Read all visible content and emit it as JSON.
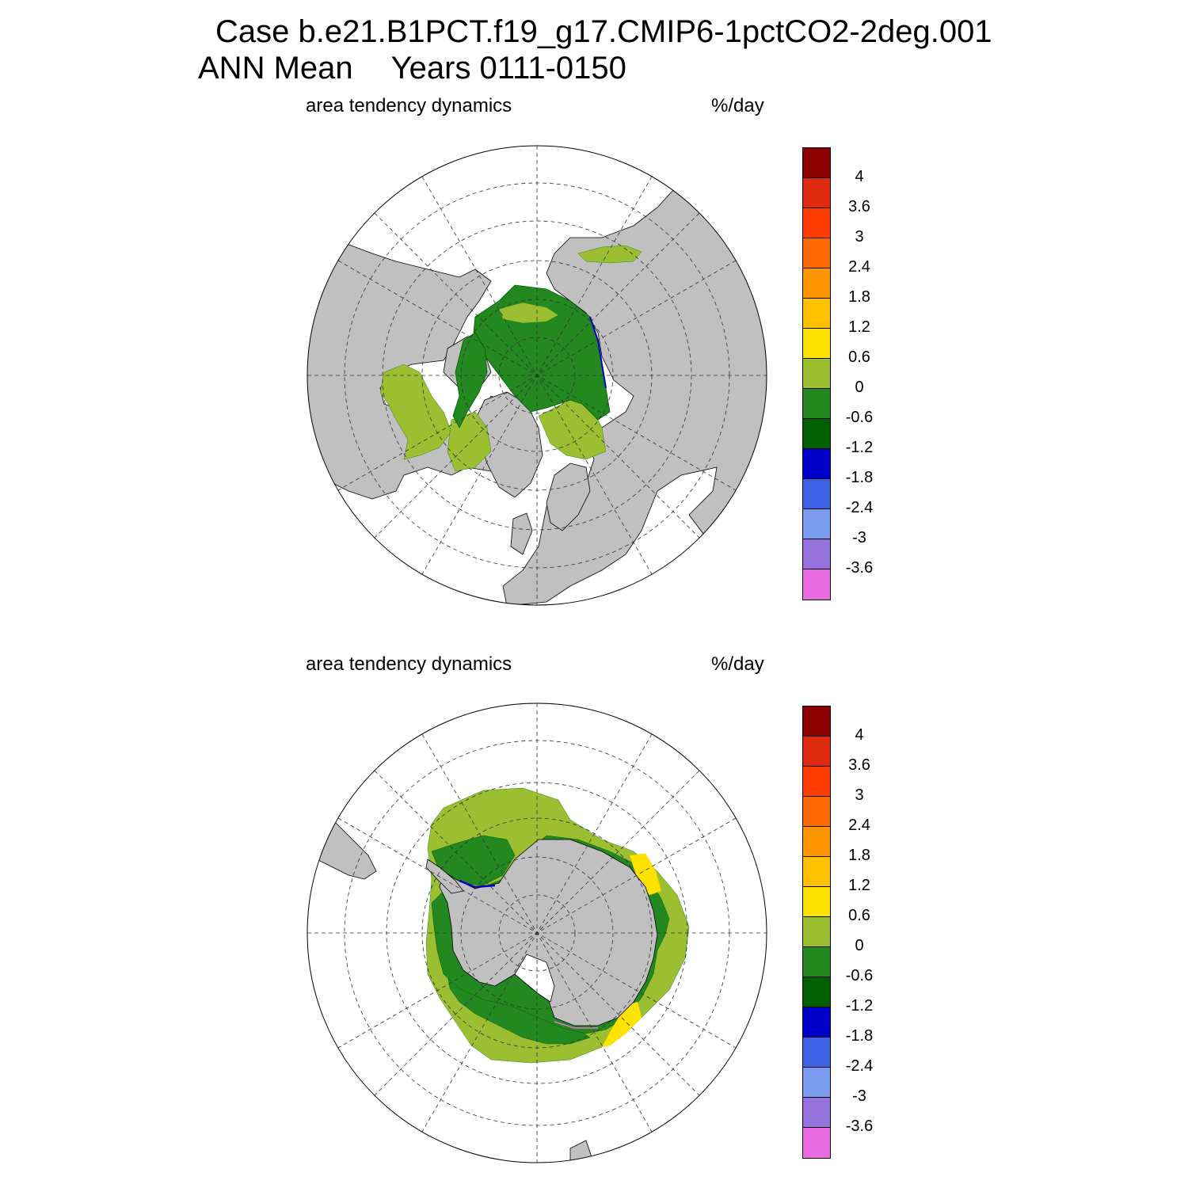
{
  "title": {
    "case": "Case b.e21.B1PCT.f19_g17.CMIP6-1pctCO2-2deg.001",
    "season": "ANN Mean",
    "years": "Years 0111-0150"
  },
  "panels": [
    {
      "name": "north",
      "variable": "area tendency dynamics",
      "units": "%/day"
    },
    {
      "name": "south",
      "variable": "area tendency dynamics",
      "units": "%/day"
    }
  ],
  "colorbar": {
    "levels": [
      "4",
      "3.6",
      "3",
      "2.4",
      "1.8",
      "1.2",
      "0.6",
      "0",
      "-0.6",
      "-1.2",
      "-1.8",
      "-2.4",
      "-3",
      "-3.6"
    ],
    "colors": [
      "#8b0000",
      "#dd2a10",
      "#ff3d00",
      "#ff6a00",
      "#ff9500",
      "#ffc000",
      "#ffe300",
      "#9cbf31",
      "#22881f",
      "#005f00",
      "#0000c8",
      "#3c63e6",
      "#7b9cf0",
      "#9673dc",
      "#e86ce0"
    ]
  },
  "map_colors": {
    "land": "#c0c0c0",
    "ocean": "#ffffff",
    "light_green": "#9cbf31",
    "green": "#22881f",
    "dark_green": "#005f00",
    "blue": "#0000c8",
    "yellow": "#ffe300",
    "violet": "#e86ce0"
  }
}
